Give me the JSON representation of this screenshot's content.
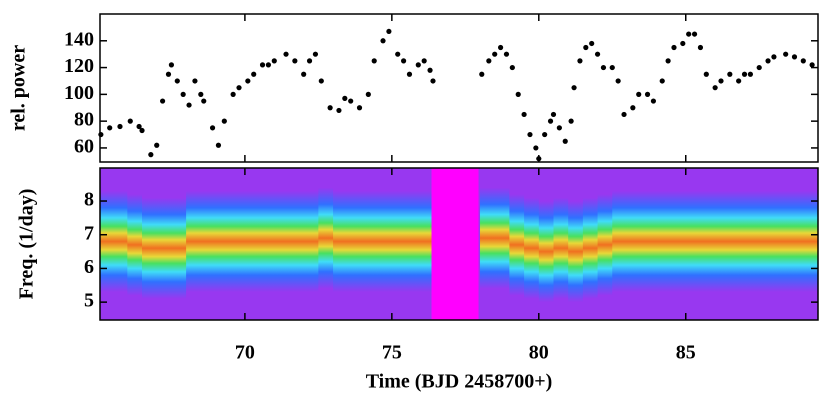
{
  "chart_data": [
    {
      "type": "scatter",
      "ylabel": "rel. power",
      "color": "#000000",
      "x": [
        65.1,
        65.4,
        65.75,
        66.1,
        66.4,
        66.5,
        66.8,
        67.0,
        67.2,
        67.4,
        67.5,
        67.7,
        67.9,
        68.1,
        68.3,
        68.5,
        68.6,
        68.9,
        69.1,
        69.3,
        69.6,
        69.8,
        70.1,
        70.3,
        70.6,
        70.8,
        71.0,
        71.4,
        71.7,
        72.0,
        72.2,
        72.4,
        72.6,
        72.9,
        73.2,
        73.4,
        73.6,
        73.9,
        74.2,
        74.4,
        74.7,
        74.9,
        75.2,
        75.4,
        75.6,
        75.9,
        76.1,
        76.3,
        76.4,
        78.06,
        78.3,
        78.5,
        78.7,
        78.9,
        79.1,
        79.3,
        79.5,
        79.7,
        79.9,
        80.0,
        80.2,
        80.4,
        80.5,
        80.7,
        80.9,
        81.1,
        81.2,
        81.4,
        81.6,
        81.8,
        82.0,
        82.2,
        82.5,
        82.7,
        82.9,
        83.2,
        83.4,
        83.7,
        83.9,
        84.2,
        84.4,
        84.6,
        84.9,
        85.1,
        85.3,
        85.5,
        85.7,
        86.0,
        86.2,
        86.5,
        86.8,
        87.0,
        87.2,
        87.5,
        87.8,
        88.0,
        88.4,
        88.7,
        89.0,
        89.3
      ],
      "values": [
        70,
        75,
        76,
        80,
        76,
        73,
        55,
        62,
        95,
        115,
        122,
        110,
        100,
        92,
        110,
        100,
        95,
        75,
        62,
        80,
        100,
        105,
        110,
        115,
        122,
        122,
        125,
        130,
        125,
        115,
        125,
        130,
        110,
        90,
        88,
        97,
        95,
        90,
        100,
        125,
        140,
        147,
        130,
        125,
        115,
        122,
        125,
        118,
        110,
        115,
        125,
        130,
        135,
        130,
        120,
        100,
        85,
        70,
        60,
        52,
        70,
        80,
        85,
        75,
        65,
        80,
        105,
        125,
        135,
        138,
        130,
        120,
        120,
        110,
        85,
        90,
        100,
        100,
        95,
        110,
        125,
        135,
        138,
        145,
        145,
        135,
        115,
        105,
        110,
        115,
        110,
        115,
        115,
        120,
        125,
        128,
        130,
        128,
        125,
        122
      ],
      "ylim": [
        49.5,
        160
      ],
      "yticks": [
        60,
        80,
        100,
        120,
        140
      ]
    },
    {
      "type": "spectrogram",
      "ylabel": "Freq. (1/day)",
      "xlabel": "Time (BJD 2458700+)",
      "x": [
        65.25,
        65.75,
        66.25,
        66.75,
        67.25,
        67.75,
        68.25,
        68.75,
        69.25,
        69.75,
        70.25,
        70.75,
        71.25,
        71.75,
        72.25,
        72.75,
        73.25,
        73.75,
        74.25,
        74.75,
        75.25,
        75.75,
        76.25,
        76.75,
        77.25,
        77.75,
        78.25,
        78.75,
        79.25,
        79.75,
        80.25,
        80.75,
        81.25,
        81.75,
        82.25,
        82.75,
        83.25,
        83.75,
        84.25,
        84.75,
        85.25,
        85.75,
        86.25,
        86.75,
        87.25,
        87.75,
        88.25,
        88.75,
        89.25
      ],
      "peak_freq": [
        6.8,
        6.8,
        6.7,
        6.6,
        6.6,
        6.6,
        6.8,
        6.8,
        6.8,
        6.8,
        6.8,
        6.8,
        6.8,
        6.8,
        6.8,
        6.9,
        6.8,
        6.8,
        6.8,
        6.8,
        6.8,
        6.8,
        6.8,
        null,
        null,
        null,
        6.9,
        6.9,
        6.7,
        6.6,
        6.5,
        6.6,
        6.5,
        6.6,
        6.7,
        6.8,
        6.8,
        6.8,
        6.8,
        6.8,
        6.8,
        6.8,
        6.8,
        6.8,
        6.8,
        6.8,
        6.8,
        6.8,
        6.8
      ],
      "gap": [
        76.35,
        77.95
      ],
      "gap_color": "#ff00ff",
      "colormap": [
        "#f07020",
        "#e8d838",
        "#48e060",
        "#40dcf8",
        "#3070ff",
        "#9838f0"
      ],
      "xlim": [
        65.07,
        89.5
      ],
      "xticks": [
        70,
        75,
        80,
        85
      ],
      "ylim": [
        4.47,
        8.98
      ],
      "yticks": [
        5,
        6,
        7,
        8
      ]
    }
  ]
}
